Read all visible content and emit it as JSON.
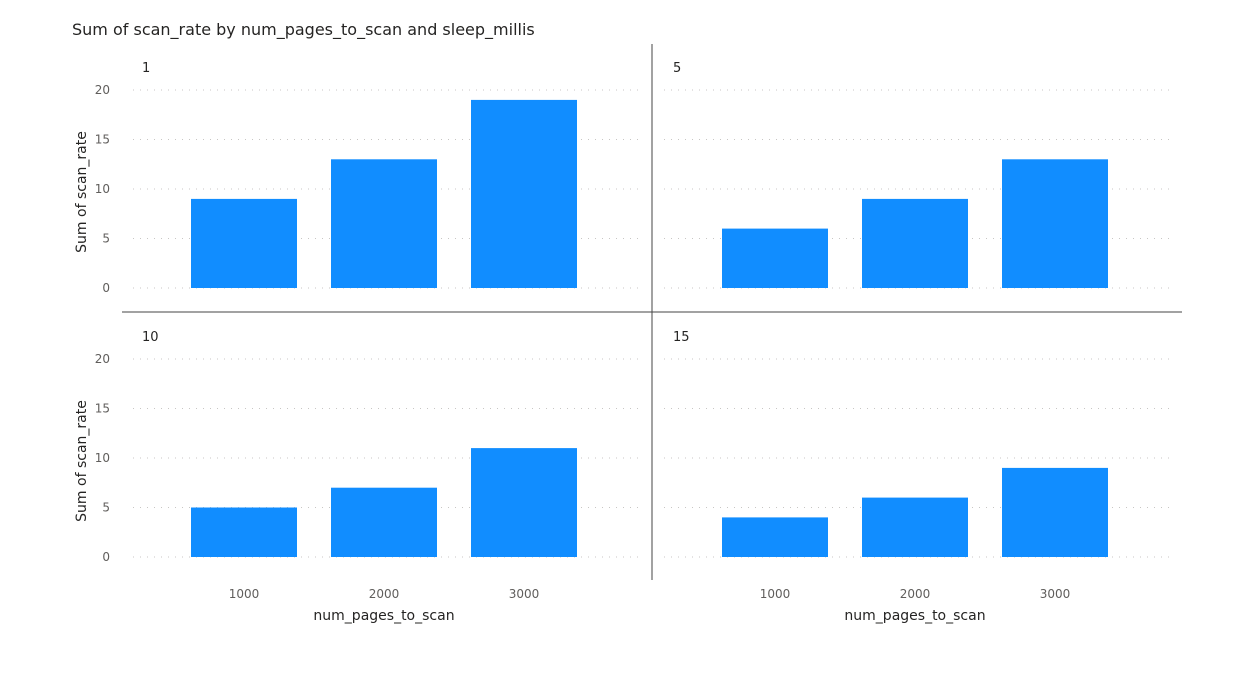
{
  "chart_data": {
    "type": "bar",
    "title": "Sum of scan_rate by num_pages_to_scan and sleep_millis",
    "xlabel": "num_pages_to_scan",
    "ylabel": "Sum of scan_rate",
    "categories": [
      "1000",
      "2000",
      "3000"
    ],
    "ylim": [
      0,
      20
    ],
    "yticks": [
      0,
      5,
      10,
      15,
      20
    ],
    "grid": true,
    "bar_color": "#118dff",
    "panels": [
      {
        "label": "1",
        "values": [
          9,
          13,
          19
        ]
      },
      {
        "label": "5",
        "values": [
          6,
          9,
          13
        ]
      },
      {
        "label": "10",
        "values": [
          5,
          7,
          11
        ]
      },
      {
        "label": "15",
        "values": [
          4,
          6,
          9
        ]
      }
    ]
  }
}
